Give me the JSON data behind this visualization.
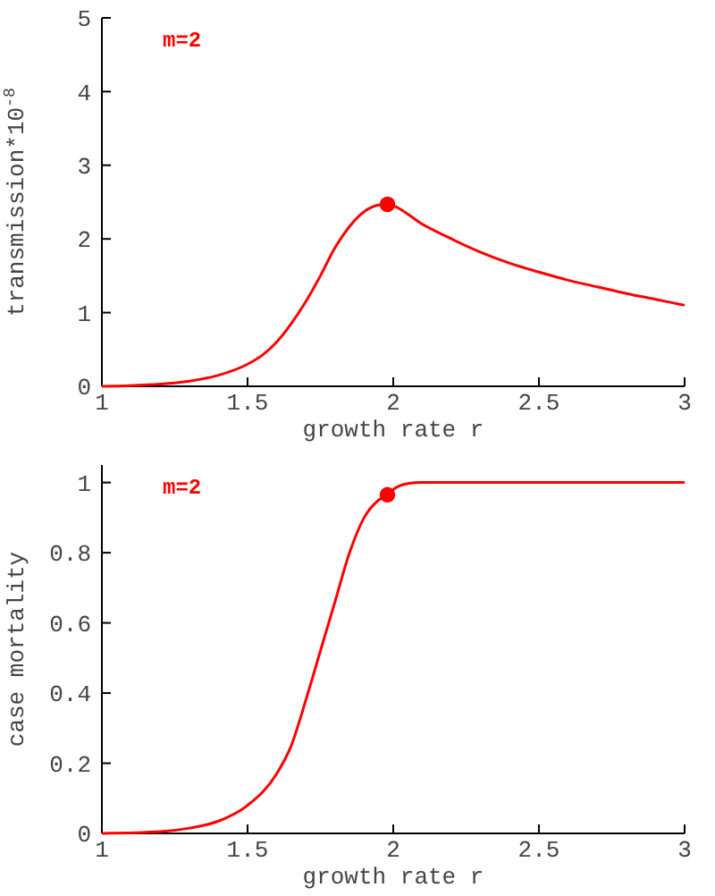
{
  "chart_data": [
    {
      "type": "line",
      "xlabel": "growth rate r",
      "ylabel": "transmission*10$^{-8}$",
      "annotations": [
        "m=2"
      ],
      "xlim": [
        1,
        3
      ],
      "ylim": [
        0,
        5
      ],
      "xticks": [
        1,
        1.5,
        2,
        2.5,
        3
      ],
      "yticks": [
        0,
        1,
        2,
        3,
        4,
        5
      ],
      "grid": false,
      "series": [
        {
          "color": "#ff0000",
          "x": [
            1,
            1.1,
            1.2,
            1.3,
            1.4,
            1.5,
            1.55,
            1.6,
            1.65,
            1.7,
            1.75,
            1.8,
            1.85,
            1.9,
            1.95,
            1.98,
            2,
            2.1,
            2.2,
            2.3,
            2.4,
            2.5,
            2.6,
            2.7,
            2.8,
            2.9,
            3
          ],
          "values": [
            0,
            0.01,
            0.03,
            0.07,
            0.15,
            0.3,
            0.42,
            0.6,
            0.85,
            1.15,
            1.5,
            1.88,
            2.17,
            2.37,
            2.46,
            2.47,
            2.45,
            2.2,
            2,
            1.82,
            1.67,
            1.55,
            1.44,
            1.35,
            1.26,
            1.18,
            1.1
          ]
        },
        {
          "type": "scatter",
          "marker": "circle",
          "color": "#ff0000",
          "x": [
            1.98
          ],
          "values": [
            2.47
          ]
        }
      ]
    },
    {
      "type": "line",
      "xlabel": "growth rate r",
      "ylabel": "case mortality",
      "annotations": [
        "m=2"
      ],
      "xlim": [
        1,
        3
      ],
      "ylim": [
        0,
        1.05
      ],
      "xticks": [
        1,
        1.5,
        2,
        2.5,
        3
      ],
      "yticks": [
        0,
        0.2,
        0.4,
        0.6,
        0.8,
        1
      ],
      "grid": false,
      "series": [
        {
          "color": "#ff0000",
          "x": [
            1,
            1.2,
            1.3,
            1.4,
            1.5,
            1.6,
            1.65,
            1.7,
            1.75,
            1.8,
            1.85,
            1.9,
            1.95,
            1.98,
            2,
            2.05,
            2.1,
            2.5,
            3
          ],
          "values": [
            0,
            0.005,
            0.015,
            0.035,
            0.08,
            0.17,
            0.25,
            0.38,
            0.52,
            0.66,
            0.8,
            0.9,
            0.95,
            0.965,
            0.98,
            0.997,
            1,
            1,
            1
          ]
        },
        {
          "type": "scatter",
          "marker": "circle",
          "color": "#ff0000",
          "x": [
            1.98
          ],
          "values": [
            0.965
          ]
        }
      ]
    }
  ]
}
